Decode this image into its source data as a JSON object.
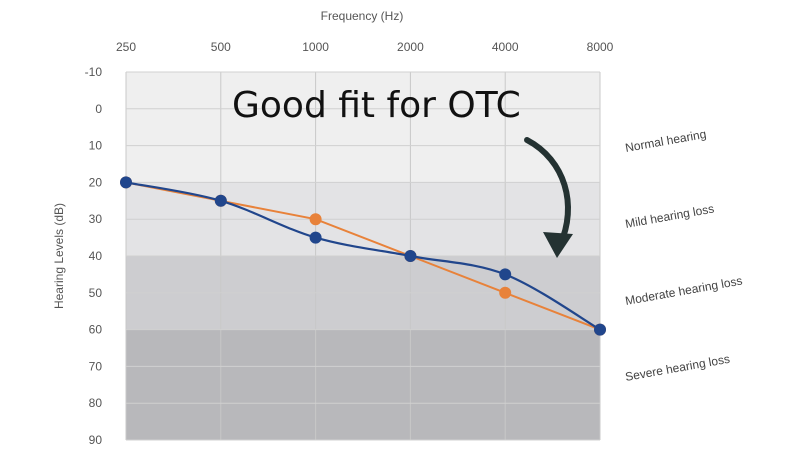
{
  "chart_data": {
    "type": "line",
    "xlabel": "Frequency (Hz)",
    "ylabel": "Hearing Levels (dB)",
    "x": [
      250,
      500,
      1000,
      2000,
      4000,
      8000
    ],
    "x_scale": "log",
    "ylim": [
      -10,
      90
    ],
    "y_inverted": true,
    "y_ticks": [
      -10,
      0,
      10,
      20,
      30,
      40,
      50,
      60,
      70,
      80,
      90
    ],
    "grid": true,
    "series": [
      {
        "color": "#e8823a",
        "values": [
          20,
          25,
          30,
          40,
          50,
          60
        ]
      },
      {
        "color": "#21468c",
        "values": [
          20,
          25,
          35,
          40,
          45,
          60
        ]
      }
    ],
    "bands": [
      {
        "label": "Normal hearing",
        "from": -10,
        "to": 20,
        "color": "#efefef"
      },
      {
        "label": "Mild hearing loss",
        "from": 20,
        "to": 40,
        "color": "#e3e3e5"
      },
      {
        "label": "Moderate hearing loss",
        "from": 40,
        "to": 60,
        "color": "#cdcdd0"
      },
      {
        "label": "Severe hearing loss",
        "from": 60,
        "to": 90,
        "color": "#b8b8bb"
      }
    ],
    "annotation": "Good fit for OTC",
    "arrow_color": "#243232"
  }
}
